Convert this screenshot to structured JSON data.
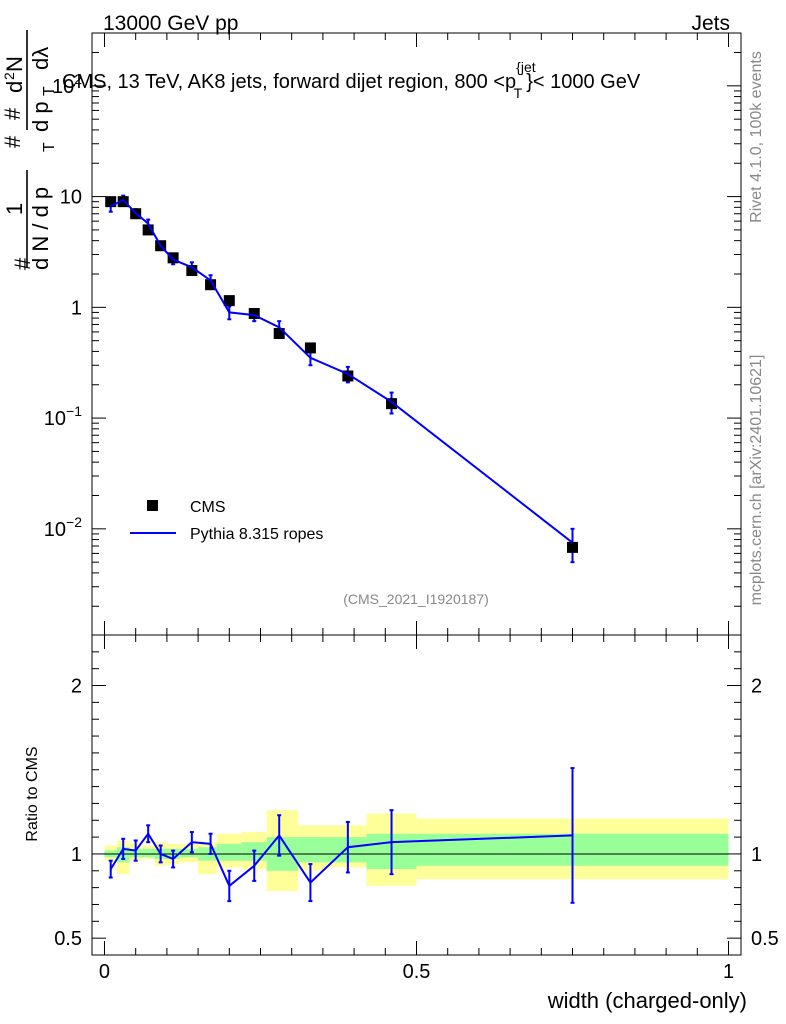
{
  "header": {
    "left": "13000 GeV pp",
    "right": "Jets"
  },
  "side_texts": {
    "rivet": "Rivet 4.1.0,  100k events",
    "mcplots": "mcplots.cern.ch [arXiv:2401.10621]"
  },
  "chart_data": [
    {
      "type": "scatter",
      "title": "CMS, 13 TeV, AK8 jets, forward dijet region, 800 <p",
      "title_sup": "{jet",
      "title_sub": "T",
      "title_tail": "}< 1000 GeV",
      "analysis_id": "(CMS_2021_I1920187)",
      "ylabel_parts": {
        "hash1": "#",
        "one": "1",
        "dN": "d N / d p",
        "dN_sub": "T",
        "hash2": "#",
        "d2N": "d",
        "d2N_sup": "2",
        "d2N_tail": "N",
        "hash3": "#",
        "dpt": "d p",
        "dpt_sub": "T",
        "dlambda": "dλ"
      },
      "yscale": "log",
      "ylim": [
        0.0011,
        300
      ],
      "xlim": [
        -0.02,
        1.02
      ],
      "yticks": [
        {
          "value": 0.01,
          "base": "10",
          "exp": "−2"
        },
        {
          "value": 0.1,
          "base": "10",
          "exp": "−1"
        },
        {
          "value": 1,
          "base": "1",
          "exp": ""
        },
        {
          "value": 10,
          "base": "10",
          "exp": ""
        },
        {
          "value": 100,
          "base": "10",
          "exp": "2"
        }
      ],
      "legend": {
        "position": "lower-left",
        "entries": [
          {
            "label": "CMS",
            "marker": "square",
            "color": "#000000"
          },
          {
            "label": "Pythia 8.315 ropes",
            "marker": "line",
            "color": "#0000ff"
          }
        ]
      },
      "series": [
        {
          "name": "CMS",
          "x": [
            0.01,
            0.03,
            0.05,
            0.07,
            0.09,
            0.11,
            0.14,
            0.17,
            0.2,
            0.24,
            0.28,
            0.33,
            0.39,
            0.46,
            0.75
          ],
          "values": [
            9.0,
            9.0,
            7.0,
            5.0,
            3.6,
            2.8,
            2.15,
            1.6,
            1.15,
            0.88,
            0.58,
            0.43,
            0.24,
            0.135,
            0.0068
          ],
          "xerr": [
            0.01,
            0.01,
            0.01,
            0.01,
            0.01,
            0.01,
            0.02,
            0.01,
            0.02,
            0.02,
            0.03,
            0.025,
            0.03,
            0.04,
            0.25
          ]
        },
        {
          "name": "Pythia 8.315 ropes",
          "x": [
            0.01,
            0.03,
            0.05,
            0.07,
            0.09,
            0.11,
            0.14,
            0.17,
            0.2,
            0.24,
            0.28,
            0.33,
            0.39,
            0.46,
            0.75
          ],
          "values": [
            8.2,
            9.3,
            7.1,
            5.7,
            3.6,
            2.7,
            2.3,
            1.75,
            0.9,
            0.85,
            0.66,
            0.35,
            0.25,
            0.14,
            0.0075
          ],
          "yerr": [
            0.9,
            0.9,
            0.6,
            0.5,
            0.3,
            0.25,
            0.25,
            0.2,
            0.12,
            0.1,
            0.09,
            0.05,
            0.04,
            0.03,
            0.0025
          ]
        }
      ]
    },
    {
      "type": "line",
      "ylabel": "Ratio to CMS",
      "xlabel": "width (charged-only)",
      "ylim": [
        0.4,
        2.3
      ],
      "xlim": [
        -0.02,
        1.02
      ],
      "yticks": [
        0.5,
        1,
        2
      ],
      "xticks": [
        0,
        0.5,
        1
      ],
      "xtick_labels": [
        "0",
        "0.5",
        "1"
      ],
      "ytick_labels": [
        "0.5",
        "1",
        "2"
      ],
      "bands": [
        {
          "x0": 0.0,
          "x1": 0.02,
          "y_lo": 0.96,
          "y_hi": 1.05,
          "g_lo": 0.98,
          "g_hi": 1.02
        },
        {
          "x0": 0.02,
          "x1": 0.04,
          "y_lo": 0.88,
          "y_hi": 1.08,
          "g_lo": 0.95,
          "g_hi": 1.04
        },
        {
          "x0": 0.04,
          "x1": 0.06,
          "y_lo": 0.96,
          "y_hi": 1.06,
          "g_lo": 0.98,
          "g_hi": 1.03
        },
        {
          "x0": 0.06,
          "x1": 0.08,
          "y_lo": 0.97,
          "y_hi": 1.05,
          "g_lo": 0.98,
          "g_hi": 1.03
        },
        {
          "x0": 0.08,
          "x1": 0.1,
          "y_lo": 0.93,
          "y_hi": 1.07,
          "g_lo": 0.97,
          "g_hi": 1.03
        },
        {
          "x0": 0.1,
          "x1": 0.12,
          "y_lo": 0.94,
          "y_hi": 1.06,
          "g_lo": 0.97,
          "g_hi": 1.03
        },
        {
          "x0": 0.12,
          "x1": 0.15,
          "y_lo": 0.95,
          "y_hi": 1.06,
          "g_lo": 0.98,
          "g_hi": 1.03
        },
        {
          "x0": 0.15,
          "x1": 0.18,
          "y_lo": 0.88,
          "y_hi": 1.07,
          "g_lo": 0.96,
          "g_hi": 1.04
        },
        {
          "x0": 0.18,
          "x1": 0.22,
          "y_lo": 0.92,
          "y_hi": 1.12,
          "g_lo": 0.96,
          "g_hi": 1.06
        },
        {
          "x0": 0.22,
          "x1": 0.26,
          "y_lo": 0.91,
          "y_hi": 1.13,
          "g_lo": 0.96,
          "g_hi": 1.07
        },
        {
          "x0": 0.26,
          "x1": 0.31,
          "y_lo": 0.78,
          "y_hi": 1.26,
          "g_lo": 0.9,
          "g_hi": 1.1
        },
        {
          "x0": 0.31,
          "x1": 0.355,
          "y_lo": 0.9,
          "y_hi": 1.17,
          "g_lo": 0.95,
          "g_hi": 1.1
        },
        {
          "x0": 0.355,
          "x1": 0.42,
          "y_lo": 0.92,
          "y_hi": 1.17,
          "g_lo": 0.95,
          "g_hi": 1.1
        },
        {
          "x0": 0.42,
          "x1": 0.5,
          "y_lo": 0.81,
          "y_hi": 1.24,
          "g_lo": 0.91,
          "g_hi": 1.12
        },
        {
          "x0": 0.5,
          "x1": 1.0,
          "y_lo": 0.85,
          "y_hi": 1.21,
          "g_lo": 0.93,
          "g_hi": 1.12
        }
      ],
      "series": [
        {
          "name": "Pythia 8.315 ropes / CMS",
          "x": [
            0.01,
            0.03,
            0.05,
            0.07,
            0.09,
            0.11,
            0.14,
            0.17,
            0.2,
            0.24,
            0.28,
            0.33,
            0.39,
            0.46,
            0.75
          ],
          "values": [
            0.91,
            1.03,
            1.02,
            1.12,
            1.0,
            0.97,
            1.07,
            1.06,
            0.81,
            0.93,
            1.11,
            0.83,
            1.04,
            1.07,
            1.11
          ],
          "yerr": [
            0.05,
            0.06,
            0.06,
            0.05,
            0.05,
            0.05,
            0.06,
            0.06,
            0.09,
            0.09,
            0.12,
            0.11,
            0.15,
            0.19,
            0.4
          ]
        }
      ],
      "reference_line": 1.0
    }
  ],
  "colors": {
    "data": "#000000",
    "mc": "#0000ff",
    "band_yellow": "#ffff99",
    "band_green": "#99ff99",
    "grey_text": "#888888"
  }
}
